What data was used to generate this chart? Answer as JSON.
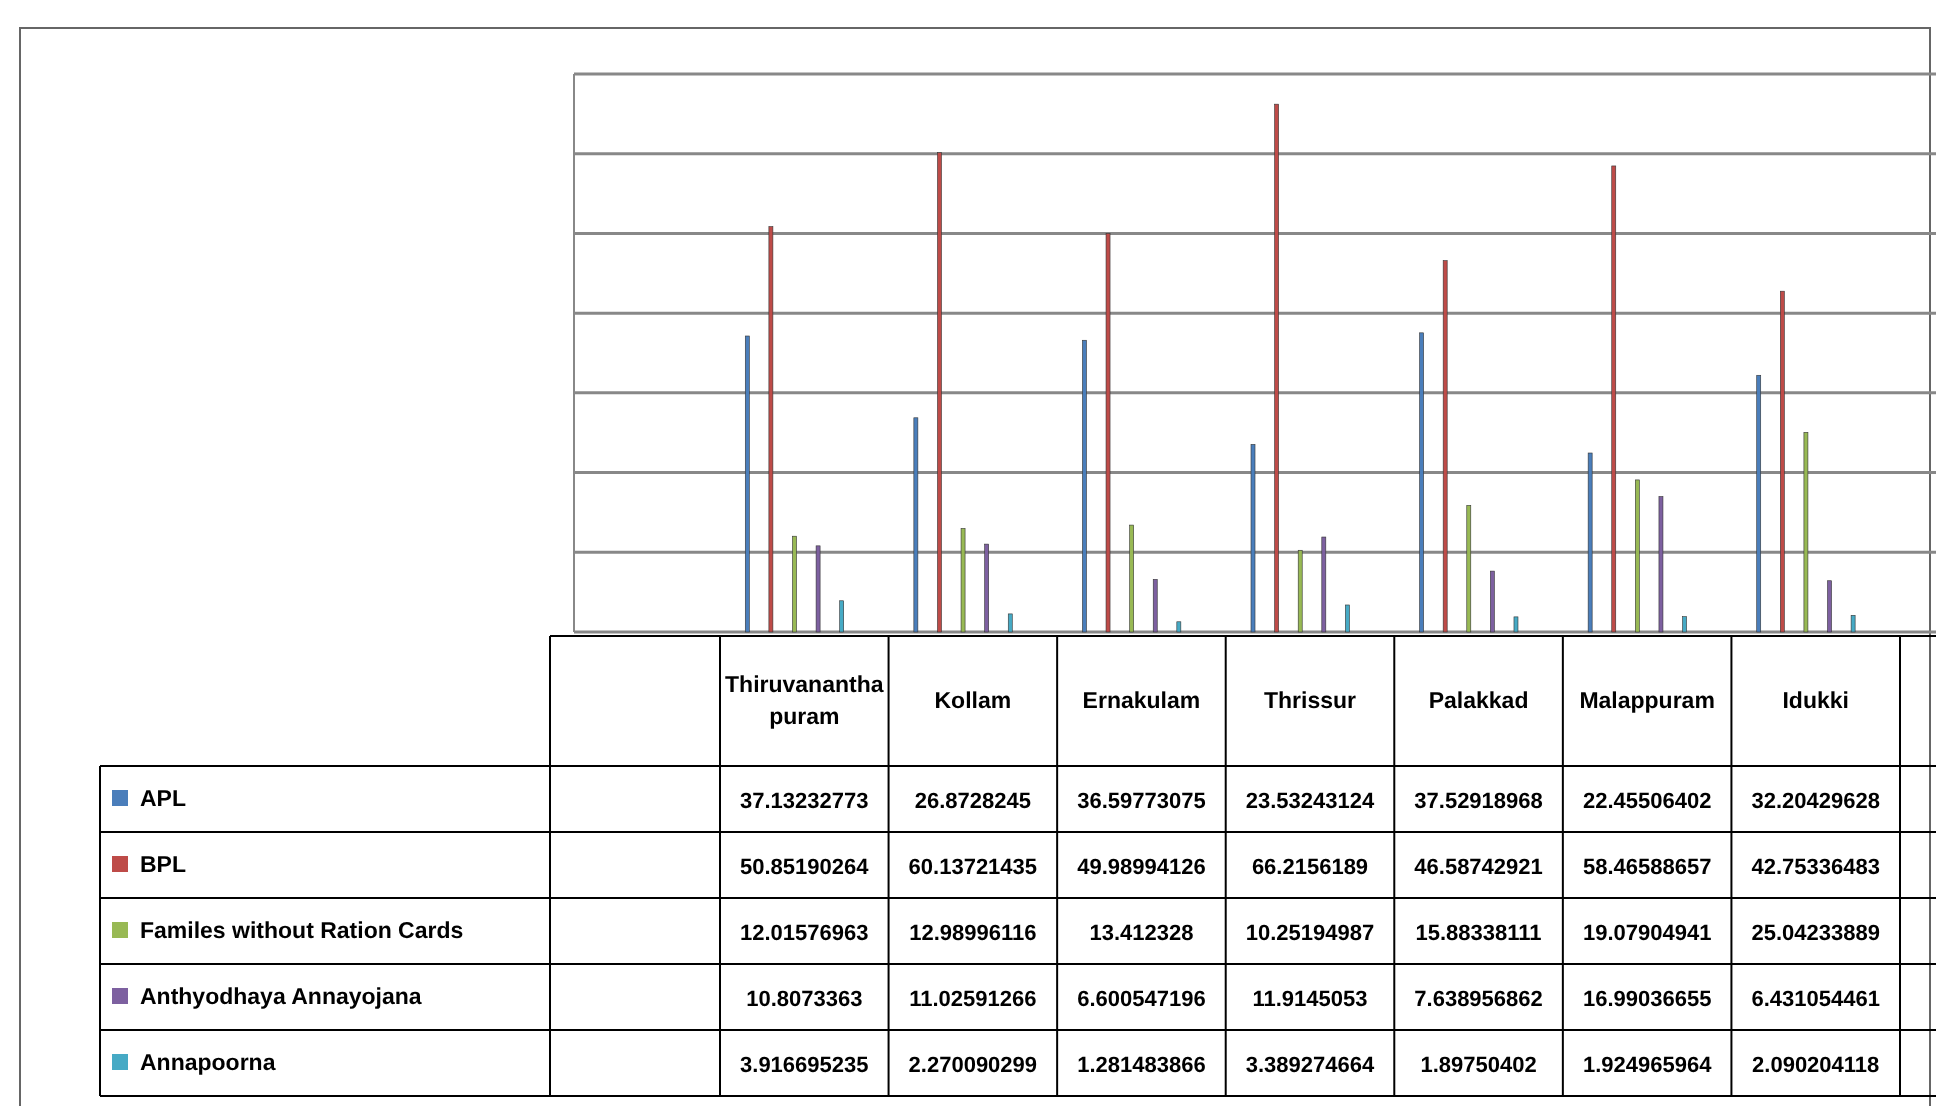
{
  "chart_data": {
    "type": "bar",
    "categories": [
      "Thiruvananthapuram",
      "Kollam",
      "Ernakulam",
      "Thrissur",
      "Palakkad",
      "Malappuram",
      "Idukki"
    ],
    "series": [
      {
        "name": "APL",
        "color": "#4a7ebb",
        "values": [
          37.13232773,
          26.8728245,
          36.59773075,
          23.53243124,
          37.52918968,
          22.45506402,
          32.20429628
        ]
      },
      {
        "name": "BPL",
        "color": "#be4b48",
        "values": [
          50.85190264,
          60.13721435,
          49.98994126,
          66.2156189,
          46.58742921,
          58.46588657,
          42.75336483
        ]
      },
      {
        "name": "Familes without Ration Cards",
        "color": "#98b954",
        "values": [
          12.01576963,
          12.98996116,
          13.412328,
          10.25194987,
          15.88338111,
          19.07904941,
          25.04233889
        ]
      },
      {
        "name": "Anthyodhaya Annayojana",
        "color": "#7d60a0",
        "values": [
          10.8073363,
          11.02591266,
          6.600547196,
          11.9145053,
          7.638956862,
          16.99036655,
          6.431054461
        ]
      },
      {
        "name": "Annapoorna",
        "color": "#46aac5",
        "values": [
          3.916695235,
          2.270090299,
          1.281483866,
          3.389274664,
          1.89750402,
          1.924965964,
          2.090204118
        ]
      }
    ],
    "ylim": [
      0,
      70
    ],
    "yticks": [
      {
        "value": 0,
        "label": null
      },
      {
        "value": 10,
        "label": null
      },
      {
        "value": 20,
        "label": null
      },
      {
        "value": 30,
        "label": null
      },
      {
        "value": 40,
        "label": null
      },
      {
        "value": 50,
        "label": null
      },
      {
        "value": 60,
        "label": null
      },
      {
        "value": 70,
        "label": null
      }
    ],
    "grid": true,
    "data_labels": true,
    "legend": "bottom",
    "tick_labels": "x"
  }
}
